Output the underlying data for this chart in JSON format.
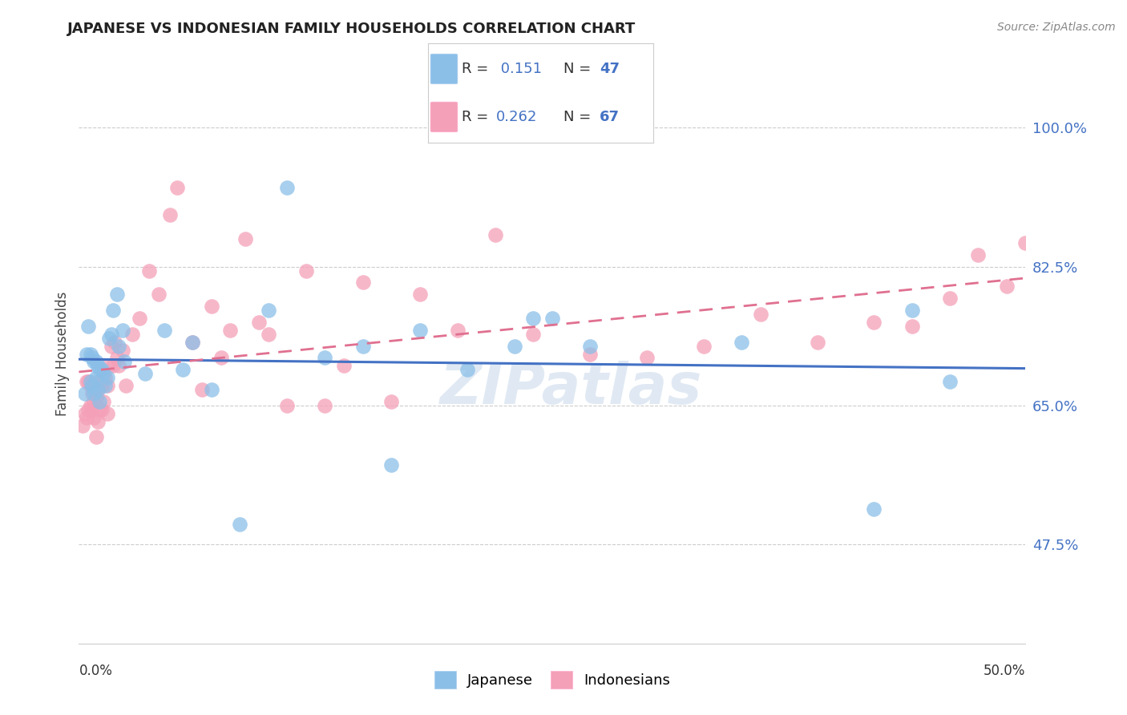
{
  "title": "JAPANESE VS INDONESIAN FAMILY HOUSEHOLDS CORRELATION CHART",
  "source": "Source: ZipAtlas.com",
  "ylabel": "Family Households",
  "ytick_values": [
    47.5,
    65.0,
    82.5,
    100.0
  ],
  "xlim": [
    0.0,
    50.0
  ],
  "ylim": [
    35.0,
    108.0
  ],
  "legend_label1": "Japanese",
  "legend_label2": "Indonesians",
  "R_japanese": 0.151,
  "N_japanese": 47,
  "R_indonesian": 0.262,
  "N_indonesian": 67,
  "color_japanese": "#8BBFE8",
  "color_indonesian": "#F4A0B8",
  "color_blue": "#4472C4",
  "color_pink": "#E07090",
  "japanese_x": [
    0.3,
    0.4,
    0.5,
    0.6,
    0.6,
    0.7,
    0.7,
    0.8,
    0.8,
    0.9,
    0.9,
    1.0,
    1.0,
    1.1,
    1.1,
    1.2,
    1.3,
    1.4,
    1.5,
    1.6,
    1.7,
    1.8,
    2.0,
    2.1,
    2.3,
    2.4,
    3.5,
    4.5,
    5.5,
    6.0,
    7.0,
    8.5,
    10.0,
    11.0,
    13.0,
    15.0,
    16.5,
    18.0,
    20.5,
    23.0,
    24.0,
    25.0,
    27.0,
    35.0,
    42.0,
    44.0,
    46.0
  ],
  "japanese_y": [
    66.5,
    71.5,
    75.0,
    71.5,
    68.0,
    71.0,
    67.5,
    70.5,
    66.5,
    70.5,
    68.5,
    70.0,
    67.0,
    69.5,
    65.5,
    69.5,
    69.0,
    67.5,
    68.5,
    73.5,
    74.0,
    77.0,
    79.0,
    72.5,
    74.5,
    70.5,
    69.0,
    74.5,
    69.5,
    73.0,
    67.0,
    50.0,
    77.0,
    92.5,
    71.0,
    72.5,
    57.5,
    74.5,
    69.5,
    72.5,
    76.0,
    76.0,
    72.5,
    73.0,
    52.0,
    77.0,
    68.0
  ],
  "indonesian_x": [
    0.2,
    0.3,
    0.4,
    0.4,
    0.5,
    0.5,
    0.6,
    0.6,
    0.7,
    0.7,
    0.8,
    0.8,
    0.9,
    0.9,
    1.0,
    1.0,
    1.1,
    1.1,
    1.2,
    1.2,
    1.3,
    1.4,
    1.5,
    1.5,
    1.6,
    1.7,
    1.8,
    1.9,
    2.0,
    2.1,
    2.3,
    2.5,
    2.8,
    3.2,
    3.7,
    4.2,
    4.8,
    5.2,
    6.0,
    6.5,
    7.0,
    7.5,
    8.0,
    8.8,
    9.5,
    10.0,
    11.0,
    12.0,
    13.0,
    14.0,
    15.0,
    16.5,
    18.0,
    20.0,
    22.0,
    24.0,
    27.0,
    30.0,
    33.0,
    36.0,
    39.0,
    42.0,
    44.0,
    46.0,
    47.5,
    49.0,
    50.0
  ],
  "indonesian_y": [
    62.5,
    64.0,
    63.5,
    68.0,
    64.5,
    68.0,
    65.0,
    67.5,
    64.5,
    66.5,
    63.5,
    65.5,
    61.0,
    66.0,
    63.0,
    67.0,
    64.5,
    68.0,
    64.5,
    67.5,
    65.5,
    68.5,
    64.0,
    67.5,
    70.0,
    72.5,
    70.0,
    73.0,
    71.0,
    70.0,
    72.0,
    67.5,
    74.0,
    76.0,
    82.0,
    79.0,
    89.0,
    92.5,
    73.0,
    67.0,
    77.5,
    71.0,
    74.5,
    86.0,
    75.5,
    74.0,
    65.0,
    82.0,
    65.0,
    70.0,
    80.5,
    65.5,
    79.0,
    74.5,
    86.5,
    74.0,
    71.5,
    71.0,
    72.5,
    76.5,
    73.0,
    75.5,
    75.0,
    78.5,
    84.0,
    80.0,
    85.5
  ]
}
